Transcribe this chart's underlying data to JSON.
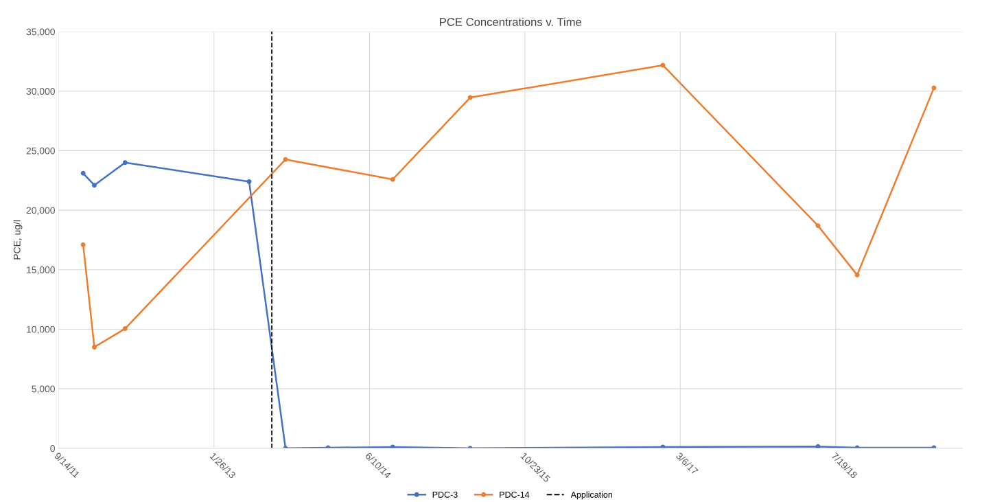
{
  "chart_data": {
    "type": "line",
    "title": "PCE Concentrations v. Time",
    "ylabel": "PCE, ug/l",
    "series": [
      {
        "name": "PDC-3",
        "color": "#4472c4",
        "x": [
          "2011-12-02",
          "2012-01-07",
          "2012-04-15",
          "2013-05-19",
          "2013-09-13",
          "2014-01-28",
          "2014-08-24",
          "2015-04-30",
          "2017-01-09",
          "2018-05-23",
          "2018-09-26",
          "2019-05-31"
        ],
        "values": [
          23100,
          22100,
          24000,
          22400,
          0,
          50,
          100,
          0,
          100,
          150,
          50,
          50
        ]
      },
      {
        "name": "PDC-14",
        "color": "#ed7d31",
        "x": [
          "2011-12-02",
          "2012-01-07",
          "2012-04-15",
          "2013-09-13",
          "2014-08-24",
          "2015-04-30",
          "2017-01-09",
          "2018-05-23",
          "2018-09-26",
          "2019-05-31"
        ],
        "values": [
          17100,
          8500,
          10050,
          24260,
          22590,
          29460,
          32180,
          18700,
          14560,
          30270
        ]
      }
    ],
    "ref_lines": [
      {
        "axis": "x",
        "value": "2013-07-31",
        "label": "Application",
        "color": "#000000",
        "line_style": "dashed"
      }
    ],
    "xlim": [
      "2011-09-14",
      "2019-08-30"
    ],
    "xticks": [
      {
        "value": "2011-09-14",
        "label": "9/14/11"
      },
      {
        "value": "2013-01-26",
        "label": "1/26/13"
      },
      {
        "value": "2014-06-10",
        "label": "6/10/14"
      },
      {
        "value": "2015-10-23",
        "label": "10/23/15"
      },
      {
        "value": "2017-03-06",
        "label": "3/6/17"
      },
      {
        "value": "2018-07-19",
        "label": "7/19/18"
      }
    ],
    "ylim": [
      0,
      35000
    ],
    "yticks": [
      {
        "value": 0,
        "label": "0"
      },
      {
        "value": 5000,
        "label": "5,000"
      },
      {
        "value": 10000,
        "label": "10,000"
      },
      {
        "value": 15000,
        "label": "15,000"
      },
      {
        "value": 20000,
        "label": "20,000"
      },
      {
        "value": 25000,
        "label": "25,000"
      },
      {
        "value": 30000,
        "label": "30,000"
      },
      {
        "value": 35000,
        "label": "35,000"
      }
    ],
    "grid": true,
    "legend": "bottom",
    "marker": "circle",
    "line_style": "solid"
  }
}
